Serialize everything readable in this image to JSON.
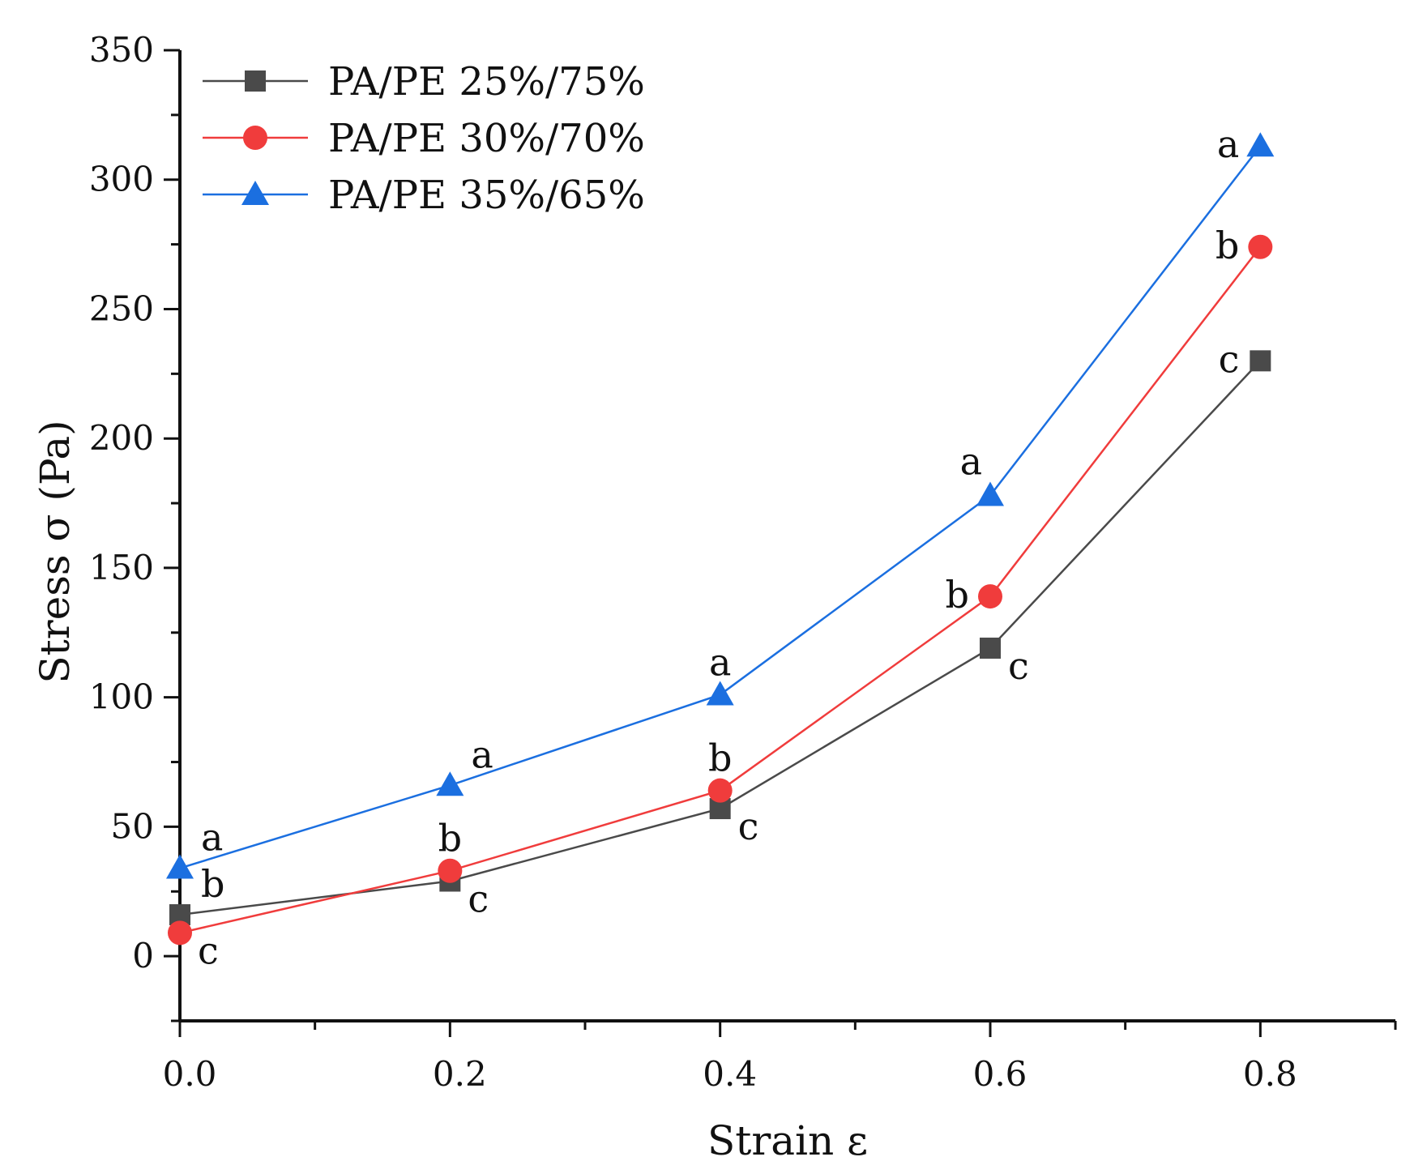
{
  "chart_data": {
    "type": "line",
    "title": "",
    "xlabel": "Strain ε",
    "ylabel": "Stress σ (Pa)",
    "xlim": [
      0.0,
      0.9
    ],
    "ylim": [
      -25,
      350
    ],
    "xticks": [
      0.0,
      0.2,
      0.4,
      0.6,
      0.8
    ],
    "xtick_labels": [
      "0.0",
      "0.2",
      "0.4",
      "0.6",
      "0.8"
    ],
    "yticks": [
      0,
      50,
      100,
      150,
      200,
      250,
      300,
      350
    ],
    "ytick_labels": [
      "0",
      "50",
      "100",
      "150",
      "200",
      "250",
      "300",
      "350"
    ],
    "grid": false,
    "legend_position": "top-left",
    "x": [
      0.0,
      0.2,
      0.4,
      0.6,
      0.8
    ],
    "series": [
      {
        "name": "PA/PE 25%/75%",
        "color": "#4a4a4a",
        "marker": "square",
        "values": [
          16,
          29,
          57,
          119,
          230
        ],
        "labels": [
          "b",
          "c",
          "c",
          "c",
          "c"
        ],
        "label_sides": [
          "ne",
          "se",
          "se",
          "se",
          "w"
        ]
      },
      {
        "name": "PA/PE 30%/70%",
        "color": "#f03c3c",
        "marker": "circle",
        "values": [
          9,
          33,
          64,
          139,
          274
        ],
        "labels": [
          "c",
          "b",
          "b",
          "b",
          "b"
        ],
        "label_sides": [
          "se",
          "n",
          "n",
          "w",
          "w"
        ]
      },
      {
        "name": "PA/PE 35%/65%",
        "color": "#1b6fe0",
        "marker": "triangle",
        "values": [
          34,
          66,
          101,
          178,
          313
        ],
        "labels": [
          "a",
          "a",
          "a",
          "a",
          "a"
        ],
        "label_sides": [
          "ne",
          "ne",
          "n",
          "nw",
          "w"
        ]
      }
    ]
  }
}
